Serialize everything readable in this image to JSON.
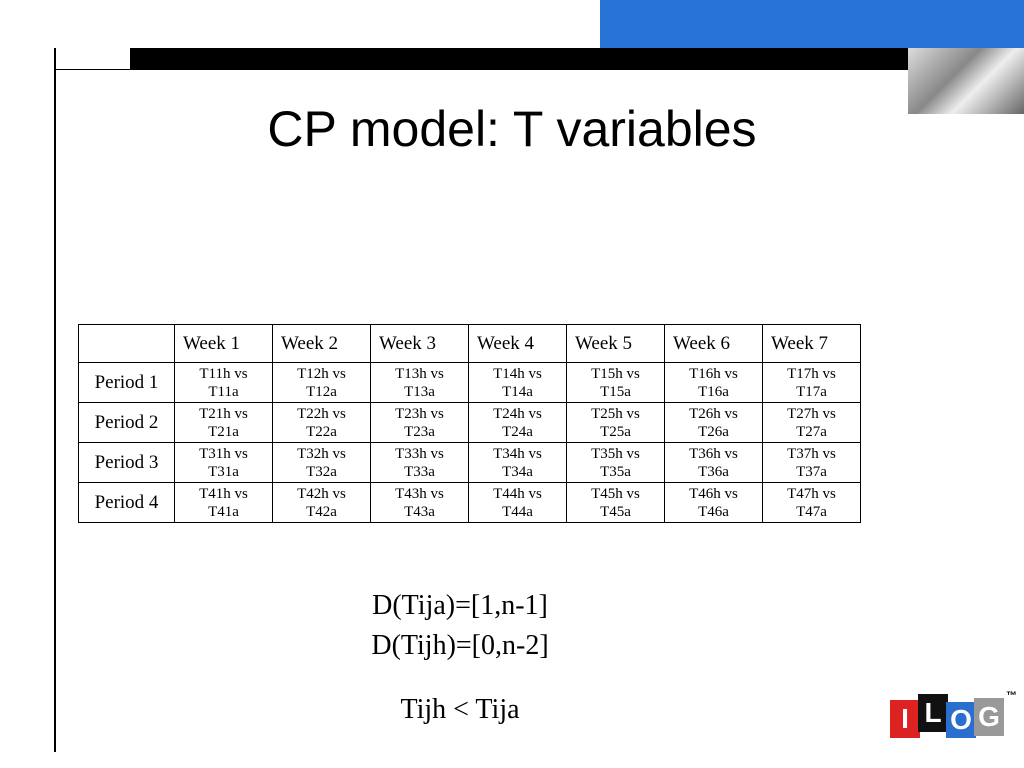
{
  "title": "CP model: T variables",
  "table": {
    "header": [
      "Week 1",
      "Week 2",
      "Week 3",
      "Week 4",
      "Week 5",
      "Week 6",
      "Week 7"
    ],
    "rows": [
      {
        "label": "Period 1",
        "cells": [
          [
            "T11h vs",
            "T11a"
          ],
          [
            "T12h vs",
            "T12a"
          ],
          [
            "T13h vs",
            "T13a"
          ],
          [
            "T14h vs",
            "T14a"
          ],
          [
            "T15h vs",
            "T15a"
          ],
          [
            "T16h vs",
            "T16a"
          ],
          [
            "T17h vs",
            "T17a"
          ]
        ]
      },
      {
        "label": "Period 2",
        "cells": [
          [
            "T21h vs",
            "T21a"
          ],
          [
            "T22h vs",
            "T22a"
          ],
          [
            "T23h vs",
            "T23a"
          ],
          [
            "T24h vs",
            "T24a"
          ],
          [
            "T25h vs",
            "T25a"
          ],
          [
            "T26h vs",
            "T26a"
          ],
          [
            "T27h vs",
            "T27a"
          ]
        ]
      },
      {
        "label": "Period 3",
        "cells": [
          [
            "T31h vs",
            "T31a"
          ],
          [
            "T32h vs",
            "T32a"
          ],
          [
            "T33h vs",
            "T33a"
          ],
          [
            "T34h vs",
            "T34a"
          ],
          [
            "T35h vs",
            "T35a"
          ],
          [
            "T36h vs",
            "T36a"
          ],
          [
            "T37h vs",
            "T37a"
          ]
        ]
      },
      {
        "label": "Period 4",
        "cells": [
          [
            "T41h vs",
            "T41a"
          ],
          [
            "T42h vs",
            "T42a"
          ],
          [
            "T43h vs",
            "T43a"
          ],
          [
            "T44h vs",
            "T44a"
          ],
          [
            "T45h vs",
            "T45a"
          ],
          [
            "T46h vs",
            "T46a"
          ],
          [
            "T47h vs",
            "T47a"
          ]
        ]
      }
    ]
  },
  "domains": [
    "D(Tija)=[1,n-1]",
    "D(Tijh)=[0,n-2]"
  ],
  "constraint": "Tijh < Tija",
  "logo": {
    "letters": [
      "I",
      "L",
      "O",
      "G"
    ],
    "trademark": "™"
  }
}
